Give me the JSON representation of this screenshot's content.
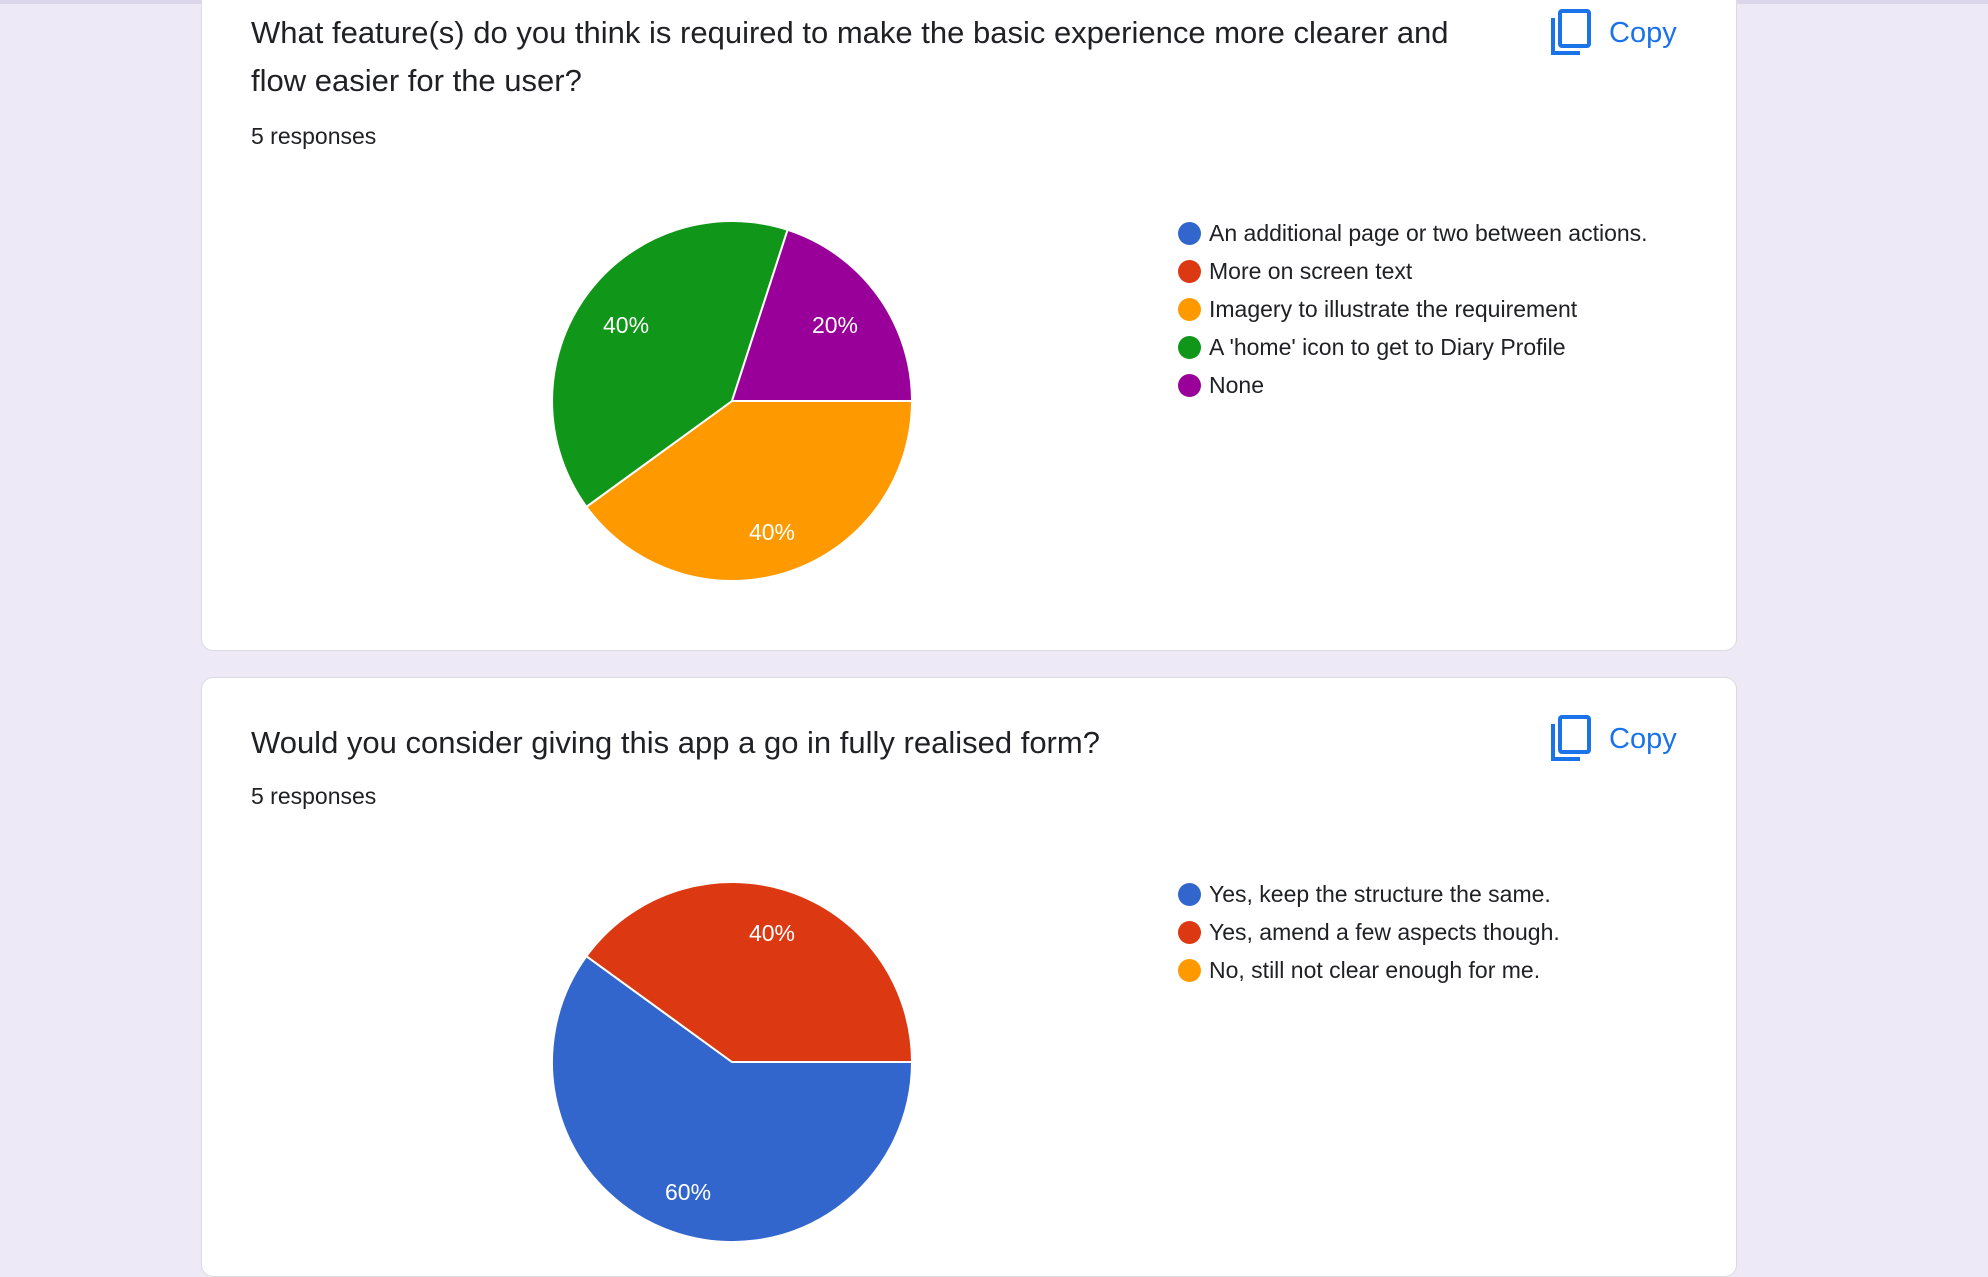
{
  "questions": [
    {
      "title": "What feature(s) do you think is required to make the basic experience more clearer and flow easier for the user?",
      "responses": "5 responses",
      "copy_label": "Copy",
      "legend": [
        {
          "label": "An additional page or two between actions.",
          "color": "#3b6ccc"
        },
        {
          "label": "More on screen text",
          "color": "#dc3912"
        },
        {
          "label": "Imagery to illustrate the requirement",
          "color": "#ff9900"
        },
        {
          "label": "A 'home' icon to get to Diary Profile",
          "color": "#109618"
        },
        {
          "label": "None",
          "color": "#990099"
        }
      ],
      "slice_labels": [
        "40%",
        "40%",
        "20%"
      ]
    },
    {
      "title": "Would you consider giving this app a go in fully realised form?",
      "responses": "5 responses",
      "copy_label": "Copy",
      "legend": [
        {
          "label": "Yes, keep the structure the same.",
          "color": "#3366cc"
        },
        {
          "label": "Yes, amend a few aspects though.",
          "color": "#dc3912"
        },
        {
          "label": "No, still not clear enough for me.",
          "color": "#ff9900"
        }
      ],
      "slice_labels": [
        "60%",
        "40%"
      ]
    }
  ],
  "chart_data": [
    {
      "type": "pie",
      "title": "What feature(s) do you think is required to make the basic experience more clearer and flow easier for the user?",
      "categories": [
        "An additional page or two between actions.",
        "More on screen text",
        "Imagery to illustrate the requirement",
        "A 'home' icon to get to Diary Profile",
        "None"
      ],
      "values": [
        0,
        0,
        40,
        40,
        20
      ],
      "unit": "%",
      "colors": [
        "#3366cc",
        "#dc3912",
        "#ff9900",
        "#109618",
        "#990099"
      ],
      "legend_position": "right"
    },
    {
      "type": "pie",
      "title": "Would you consider giving this app a go in fully realised form?",
      "categories": [
        "Yes, keep the structure the same.",
        "Yes, amend a few aspects though.",
        "No, still not clear enough for me."
      ],
      "values": [
        60,
        40,
        0
      ],
      "unit": "%",
      "colors": [
        "#3366cc",
        "#dc3912",
        "#ff9900"
      ],
      "legend_position": "right"
    }
  ]
}
